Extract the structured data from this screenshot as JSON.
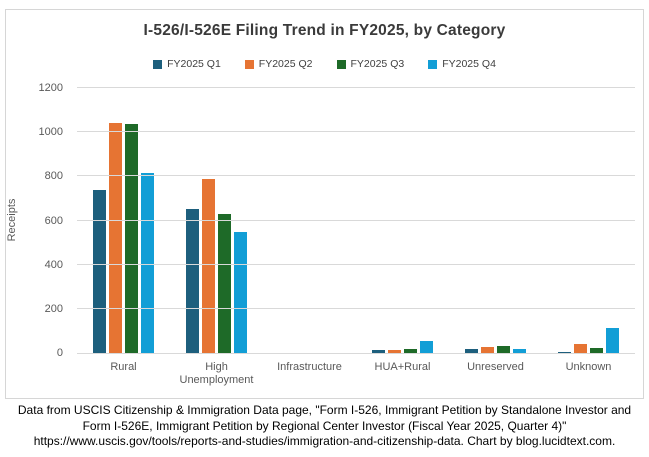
{
  "chart_data": {
    "type": "bar",
    "title": "I-526/I-526E Filing Trend in FY2025, by Category",
    "xlabel": "",
    "ylabel": "Receipts",
    "categories": [
      "Rural",
      "High Unemployment",
      "Infrastructure",
      "HUA+Rural",
      "Unreserved",
      "Unknown"
    ],
    "series": [
      {
        "name": "FY2025 Q1",
        "color": "#1D5F7D",
        "values": [
          740,
          650,
          0,
          15,
          18,
          5
        ]
      },
      {
        "name": "FY2025 Q2",
        "color": "#E67433",
        "values": [
          1040,
          790,
          0,
          12,
          25,
          40
        ]
      },
      {
        "name": "FY2025 Q3",
        "color": "#1E6A28",
        "values": [
          1035,
          630,
          0,
          20,
          30,
          22
        ]
      },
      {
        "name": "FY2025 Q4",
        "color": "#129ED6",
        "values": [
          815,
          550,
          0,
          55,
          18,
          115
        ]
      }
    ],
    "ylim": [
      0,
      1200
    ],
    "ytick_interval": 200,
    "grid": true,
    "legend_position": "top-center"
  },
  "caption": {
    "lines": [
      "Data from USCIS Citizenship & Immigration Data page, \"Form I-526, Immigrant Petition by Standalone Investor and",
      "Form I-526E, Immigrant Petition by Regional Center Investor (Fiscal Year 2025, Quarter 4)\"",
      "https://www.uscis.gov/tools/reports-and-studies/immigration-and-citizenship-data. Chart by blog.lucidtext.com."
    ]
  }
}
